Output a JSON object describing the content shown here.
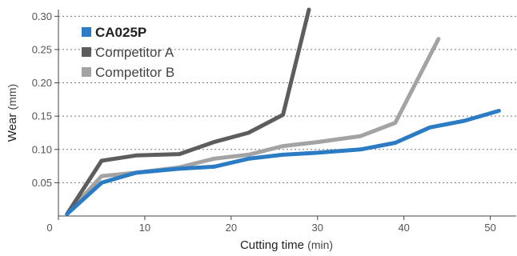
{
  "chart_data": {
    "type": "line",
    "xlabel": "Cutting time",
    "xlabel_unit": "(min)",
    "ylabel": "Wear",
    "ylabel_unit": "(mm)",
    "xlim": [
      0,
      53
    ],
    "ylim": [
      0,
      0.31
    ],
    "xticks": [
      "0",
      "10",
      "20",
      "30",
      "40",
      "50"
    ],
    "xtick_values": [
      0,
      10,
      20,
      30,
      40,
      50
    ],
    "yticks": [
      "0.05",
      "0.10",
      "0.15",
      "0.20",
      "0.25",
      "0.30"
    ],
    "ytick_values": [
      0.05,
      0.1,
      0.15,
      0.2,
      0.25,
      0.3
    ],
    "grid": "horizontal-dotted",
    "legend_position": "top-left",
    "series": [
      {
        "name": "CA025P",
        "color": "#2b7cc4",
        "x": [
          1,
          5,
          9,
          14,
          18,
          22,
          26,
          30,
          35,
          39,
          43,
          47,
          51
        ],
        "y": [
          0.003,
          0.05,
          0.065,
          0.071,
          0.074,
          0.086,
          0.092,
          0.095,
          0.1,
          0.11,
          0.133,
          0.143,
          0.158
        ]
      },
      {
        "name": "Competitor A",
        "color": "#5d5d5d",
        "x": [
          1,
          5,
          9,
          14,
          18,
          22,
          26,
          29
        ],
        "y": [
          0.003,
          0.083,
          0.091,
          0.093,
          0.111,
          0.125,
          0.152,
          0.31
        ]
      },
      {
        "name": "Competitor B",
        "color": "#a3a3a3",
        "x": [
          1,
          5,
          9,
          14,
          18,
          22,
          26,
          30,
          35,
          39,
          44
        ],
        "y": [
          0.003,
          0.06,
          0.065,
          0.073,
          0.086,
          0.092,
          0.105,
          0.111,
          0.12,
          0.14,
          0.266
        ]
      }
    ]
  }
}
